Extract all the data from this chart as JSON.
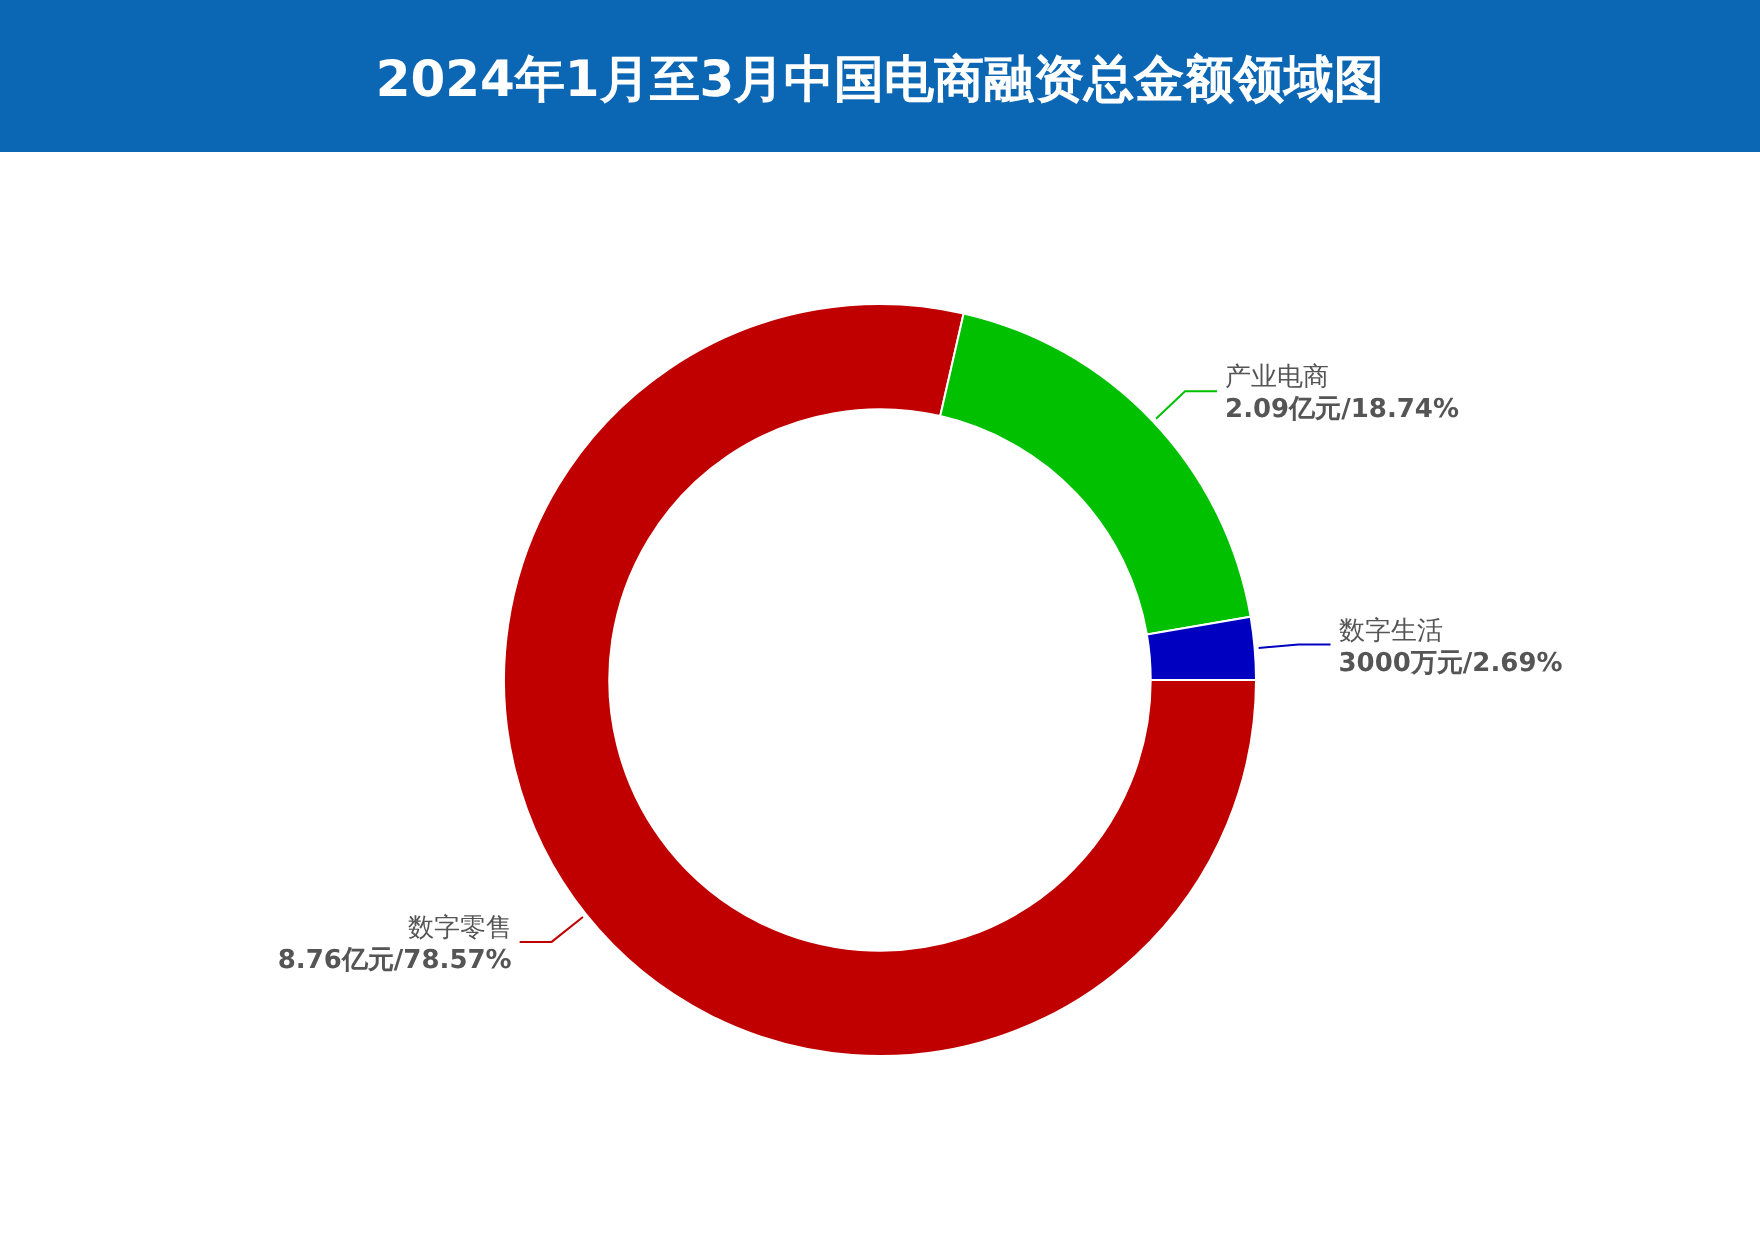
{
  "chart_data": {
    "type": "donut",
    "title": "2024年1月至3月中国电商融资总金额领域图",
    "categories": [
      "数字零售",
      "产业电商",
      "数字生活"
    ],
    "values": [
      78.57,
      18.74,
      2.69
    ],
    "colors": [
      "#c00000",
      "#00c000",
      "#0000c0"
    ],
    "value_labels": [
      "8.76亿元/78.57%",
      "2.09亿元/18.74%",
      "3000万元/2.69%"
    ],
    "legend": false
  }
}
